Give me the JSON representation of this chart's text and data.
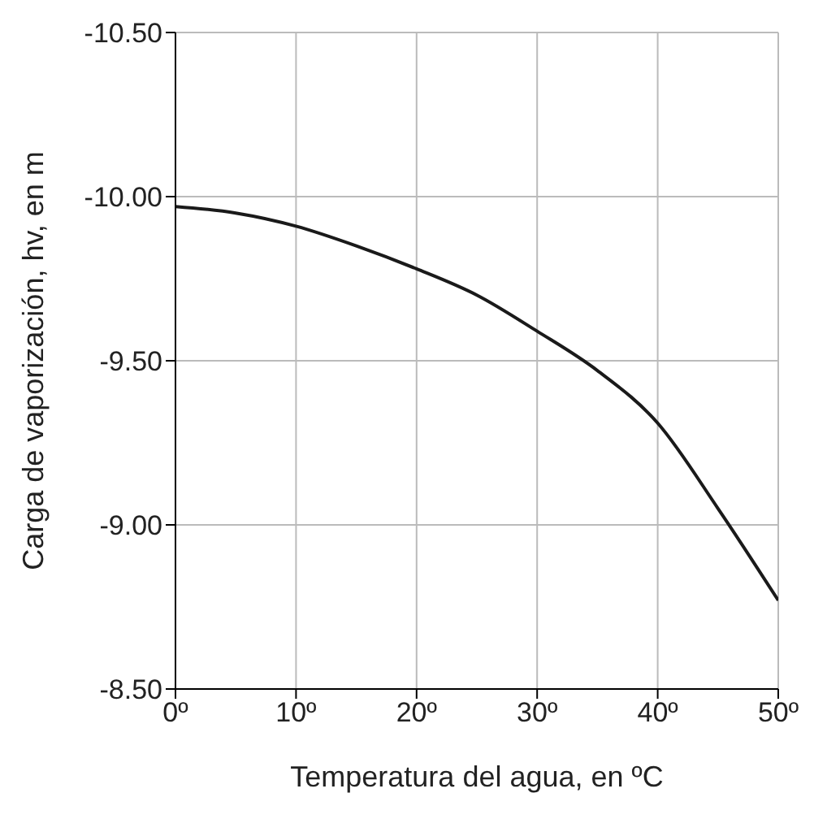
{
  "chart_data": {
    "type": "line",
    "xlabel": "Temperatura del agua, en ºC",
    "ylabel": "Carga de vaporización, hv, en m",
    "x": [
      0,
      5,
      10,
      15,
      20,
      25,
      30,
      35,
      40,
      45,
      50
    ],
    "series": [
      {
        "color": "#1a1a1a",
        "values": [
          -9.97,
          -9.95,
          -9.91,
          -9.85,
          -9.78,
          -9.7,
          -9.59,
          -9.47,
          -9.31,
          -9.05,
          -8.77
        ]
      }
    ],
    "xlim": [
      0,
      50
    ],
    "xticks": [
      {
        "value": 0,
        "label": "0º"
      },
      {
        "value": 10,
        "label": "10º"
      },
      {
        "value": 20,
        "label": "20º"
      },
      {
        "value": 30,
        "label": "30º"
      },
      {
        "value": 40,
        "label": "40º"
      },
      {
        "value": 50,
        "label": "50º"
      }
    ],
    "ylim": [
      -8.5,
      -10.5
    ],
    "yticks": [
      {
        "value": -10.5,
        "label": "-10.50"
      },
      {
        "value": -10,
        "label": "-10.00"
      },
      {
        "value": -9.5,
        "label": "-9.50"
      },
      {
        "value": -9,
        "label": "-9.00"
      },
      {
        "value": -8.5,
        "label": "-8.50"
      }
    ],
    "grid": true,
    "legend": false,
    "marker": "none",
    "line_style": "solid"
  }
}
